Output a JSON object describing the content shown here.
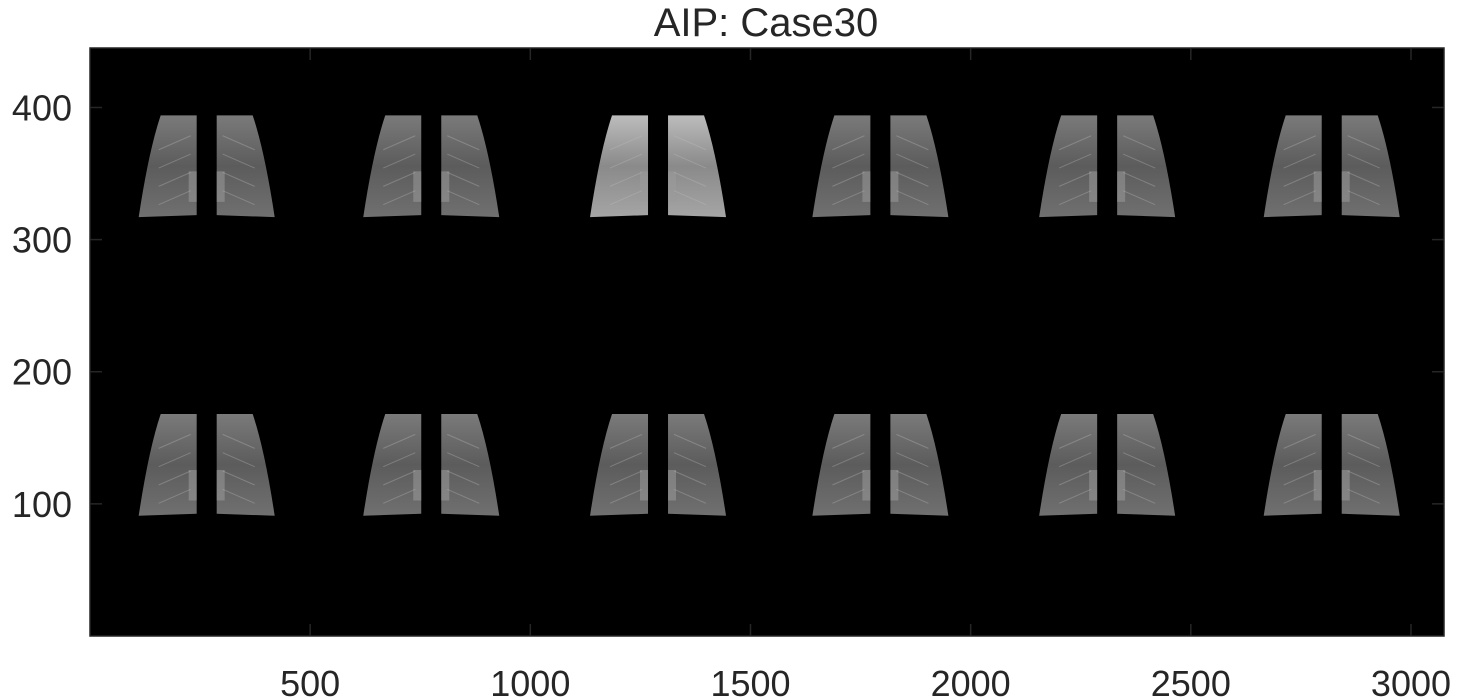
{
  "chart_data": {
    "type": "image",
    "title": "AIP: Case30",
    "xlim": [
      0,
      3075
    ],
    "ylim": [
      0,
      445
    ],
    "y_direction": "normal",
    "xticks": [
      500,
      1000,
      1500,
      2000,
      2500,
      3000
    ],
    "yticks": [
      100,
      200,
      300,
      400
    ],
    "xtick_labels": [
      "500",
      "1000",
      "1500",
      "2000",
      "2500",
      "3000"
    ],
    "ytick_labels": [
      "100",
      "200",
      "300",
      "400"
    ],
    "background": "#000000",
    "grid": [
      2,
      6
    ]
  }
}
